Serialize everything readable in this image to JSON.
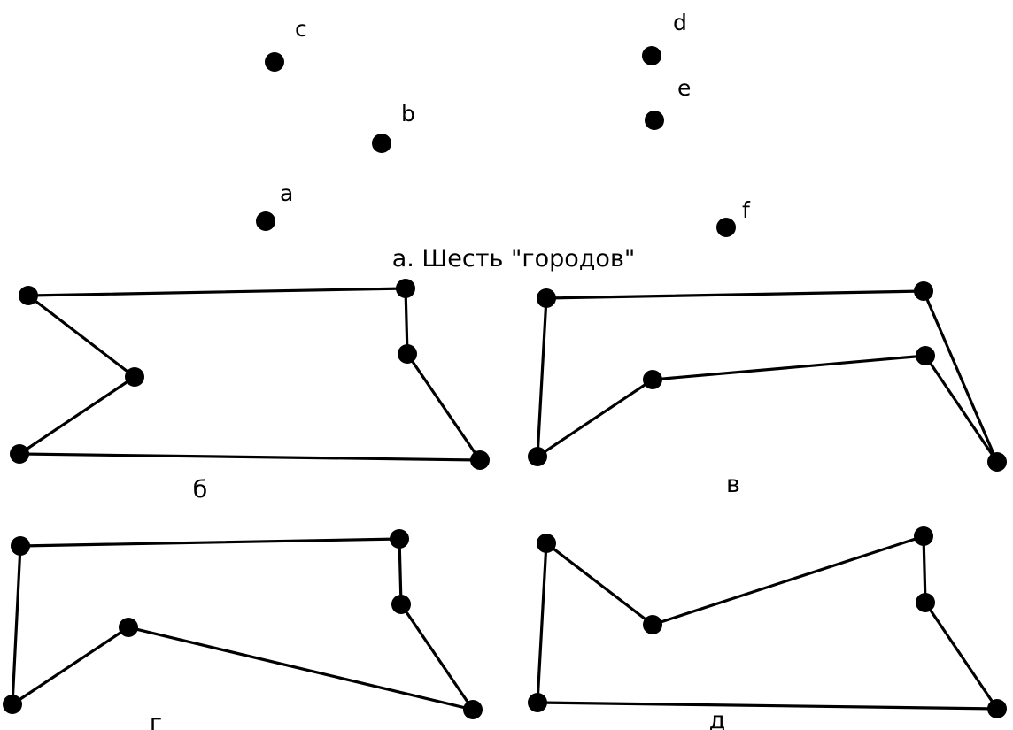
{
  "cities": [
    {
      "id": "c",
      "label": "c"
    },
    {
      "id": "b",
      "label": "b"
    },
    {
      "id": "a",
      "label": "a"
    },
    {
      "id": "d",
      "label": "d"
    },
    {
      "id": "e",
      "label": "e"
    },
    {
      "id": "f",
      "label": "f"
    }
  ],
  "panels": [
    {
      "id": "a",
      "caption": "а. Шесть \"городов\"",
      "order": []
    },
    {
      "id": "b",
      "caption": "б",
      "order": [
        "c",
        "b",
        "a",
        "f",
        "e",
        "d"
      ]
    },
    {
      "id": "v",
      "caption": "в",
      "order": [
        "c",
        "d",
        "f",
        "e",
        "b",
        "a"
      ]
    },
    {
      "id": "g",
      "caption": "г",
      "order": [
        "c",
        "d",
        "e",
        "f",
        "b",
        "a"
      ]
    },
    {
      "id": "d",
      "caption": "д",
      "order": [
        "c",
        "b",
        "d",
        "e",
        "f",
        "a"
      ]
    }
  ],
  "colors": {
    "ink": "#000000",
    "background": "#ffffff"
  }
}
